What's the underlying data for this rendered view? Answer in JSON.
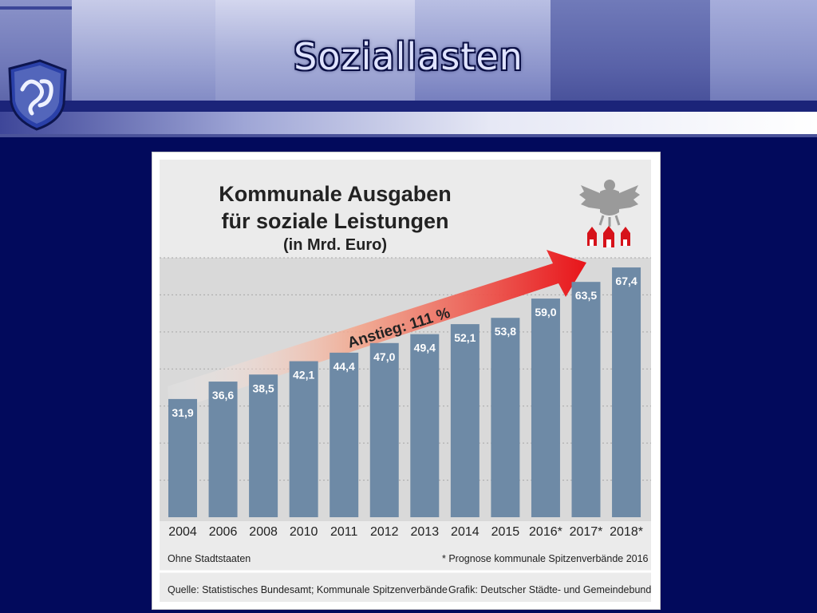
{
  "header": {
    "title": "Soziallasten"
  },
  "chart_data": {
    "type": "bar",
    "title": [
      "Kommunale Ausgaben",
      "für soziale Leistungen"
    ],
    "subtitle": "(in Mrd. Euro)",
    "categories": [
      "2004",
      "2006",
      "2008",
      "2010",
      "2011",
      "2012",
      "2013",
      "2014",
      "2015",
      "2016*",
      "2017*",
      "2018*"
    ],
    "values": [
      31.9,
      36.6,
      38.5,
      42.1,
      44.4,
      47.0,
      49.4,
      52.1,
      53.8,
      59.0,
      63.5,
      67.4
    ],
    "value_labels": [
      "31,9",
      "36,6",
      "38,5",
      "42,1",
      "44,4",
      "47,0",
      "49,4",
      "52,1",
      "53,8",
      "59,0",
      "63,5",
      "67,4"
    ],
    "ylim": [
      0,
      70
    ],
    "gridlines": true,
    "bar_color": "#6e8aa6",
    "annotation": "Anstieg: 111 %",
    "arrow_color": "#e8141a",
    "note_left": "Ohne Stadtstaaten",
    "note_right": "* Prognose kommunale Spitzenverbände 2016",
    "source_left": "Quelle: Statistisches Bundesamt; Kommunale Spitzenverbände",
    "source_right": "Grafik: Deutscher Städte- und Gemeindebund"
  },
  "icons": {
    "logo": "city-crest-icon",
    "eagle": "federal-eagle-icon",
    "towns": "town-houses-icon"
  }
}
